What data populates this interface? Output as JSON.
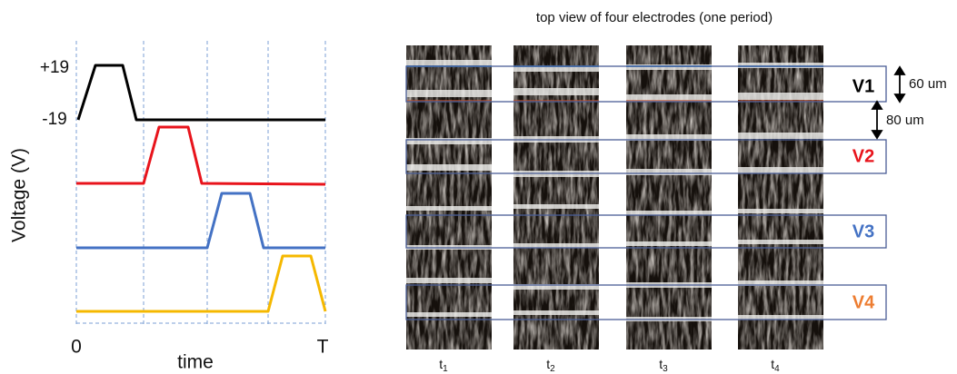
{
  "waveform_panel": {
    "y_label": "Voltage (V)",
    "levels": [
      "+19",
      "-19"
    ],
    "x_label": "time",
    "x_start": "0",
    "x_end": "T"
  },
  "image_panel": {
    "title": "top view of four electrodes (one period)",
    "electrodes": [
      "V1",
      "V2",
      "V3",
      "V4"
    ],
    "dimensions": [
      "60 um",
      "80 um"
    ],
    "time_points": [
      {
        "base": "t",
        "sub": "1"
      },
      {
        "base": "t",
        "sub": "2"
      },
      {
        "base": "t",
        "sub": "3"
      },
      {
        "base": "t",
        "sub": "4"
      }
    ]
  }
}
